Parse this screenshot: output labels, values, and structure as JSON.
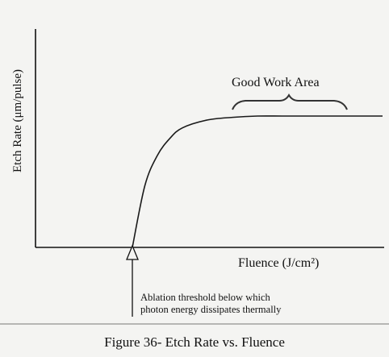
{
  "chart_data": {
    "type": "line",
    "title": "",
    "xlabel": "Fluence (J/cm²)",
    "ylabel": "Etch Rate (μm/pulse)",
    "x_ticks": [],
    "y_ticks": [],
    "grid": false,
    "legend": "none",
    "series": [
      {
        "x": [
          0.0,
          0.05,
          0.1,
          0.15,
          0.2,
          0.3,
          0.4,
          0.5,
          0.6,
          0.7,
          0.8,
          0.9,
          1.0
        ],
        "y": [
          0.0,
          0.47,
          0.7,
          0.83,
          0.91,
          0.97,
          0.99,
          1.0,
          1.0,
          1.0,
          1.0,
          1.0,
          1.0
        ]
      }
    ],
    "annotations": {
      "work_area": "Good Work Area",
      "threshold": [
        "Ablation threshold below which",
        "photon energy dissipates thermally"
      ]
    },
    "colors": {
      "line": "#1a1a1a",
      "background": "#f4f4f2"
    }
  },
  "caption": "Figure 36- Etch Rate vs. Fluence"
}
